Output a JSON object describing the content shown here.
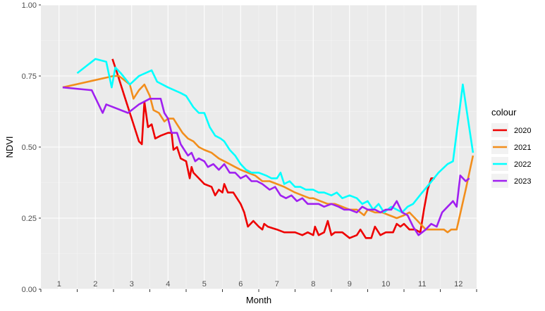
{
  "chart_data": {
    "type": "line",
    "xlabel": "Month",
    "ylabel": "NDVI",
    "xlim": [
      0.5,
      12.5
    ],
    "ylim": [
      0,
      1
    ],
    "y_ticks": [
      "0.00",
      "0.25",
      "0.50",
      "0.75",
      "1.00"
    ],
    "x_ticks": [
      "1",
      "2",
      "3",
      "4",
      "5",
      "6",
      "7",
      "8",
      "9",
      "10",
      "11",
      "12"
    ],
    "grid": true,
    "legend": {
      "title": "colour",
      "placement": "right"
    },
    "series": [
      {
        "name": "2020",
        "color": "#EE0000",
        "points": [
          [
            2.47,
            0.81
          ],
          [
            2.6,
            0.76
          ],
          [
            2.8,
            0.68
          ],
          [
            3.0,
            0.6
          ],
          [
            3.2,
            0.52
          ],
          [
            3.28,
            0.51
          ],
          [
            3.35,
            0.66
          ],
          [
            3.45,
            0.57
          ],
          [
            3.55,
            0.58
          ],
          [
            3.65,
            0.53
          ],
          [
            3.8,
            0.54
          ],
          [
            4.0,
            0.55
          ],
          [
            4.1,
            0.55
          ],
          [
            4.15,
            0.49
          ],
          [
            4.25,
            0.5
          ],
          [
            4.35,
            0.46
          ],
          [
            4.5,
            0.45
          ],
          [
            4.6,
            0.39
          ],
          [
            4.65,
            0.43
          ],
          [
            4.7,
            0.41
          ],
          [
            4.85,
            0.39
          ],
          [
            5.0,
            0.37
          ],
          [
            5.2,
            0.36
          ],
          [
            5.3,
            0.33
          ],
          [
            5.4,
            0.35
          ],
          [
            5.5,
            0.34
          ],
          [
            5.55,
            0.37
          ],
          [
            5.65,
            0.34
          ],
          [
            5.8,
            0.34
          ],
          [
            5.9,
            0.32
          ],
          [
            6.0,
            0.3
          ],
          [
            6.1,
            0.27
          ],
          [
            6.2,
            0.22
          ],
          [
            6.35,
            0.24
          ],
          [
            6.5,
            0.22
          ],
          [
            6.6,
            0.21
          ],
          [
            6.65,
            0.23
          ],
          [
            6.75,
            0.22
          ],
          [
            7.0,
            0.21
          ],
          [
            7.2,
            0.2
          ],
          [
            7.5,
            0.2
          ],
          [
            7.7,
            0.19
          ],
          [
            7.85,
            0.2
          ],
          [
            8.0,
            0.19
          ],
          [
            8.05,
            0.22
          ],
          [
            8.15,
            0.19
          ],
          [
            8.3,
            0.2
          ],
          [
            8.4,
            0.24
          ],
          [
            8.5,
            0.19
          ],
          [
            8.6,
            0.2
          ],
          [
            8.8,
            0.2
          ],
          [
            9.0,
            0.18
          ],
          [
            9.2,
            0.19
          ],
          [
            9.3,
            0.21
          ],
          [
            9.45,
            0.18
          ],
          [
            9.6,
            0.18
          ],
          [
            9.7,
            0.22
          ],
          [
            9.85,
            0.19
          ],
          [
            10.0,
            0.2
          ],
          [
            10.2,
            0.2
          ],
          [
            10.3,
            0.23
          ],
          [
            10.4,
            0.22
          ],
          [
            10.5,
            0.23
          ],
          [
            10.65,
            0.21
          ],
          [
            10.8,
            0.21
          ],
          [
            10.95,
            0.2
          ],
          [
            11.05,
            0.28
          ],
          [
            11.15,
            0.35
          ],
          [
            11.25,
            0.39
          ],
          [
            11.35,
            0.39
          ]
        ]
      },
      {
        "name": "2021",
        "color": "#F28E1C",
        "points": [
          [
            1.1,
            0.71
          ],
          [
            2.5,
            0.75
          ],
          [
            2.65,
            0.75
          ],
          [
            2.75,
            0.74
          ],
          [
            2.95,
            0.72
          ],
          [
            3.05,
            0.67
          ],
          [
            3.2,
            0.7
          ],
          [
            3.35,
            0.72
          ],
          [
            3.5,
            0.68
          ],
          [
            3.6,
            0.63
          ],
          [
            3.75,
            0.62
          ],
          [
            3.9,
            0.59
          ],
          [
            4.0,
            0.6
          ],
          [
            4.15,
            0.6
          ],
          [
            4.25,
            0.58
          ],
          [
            4.4,
            0.55
          ],
          [
            4.55,
            0.53
          ],
          [
            4.7,
            0.52
          ],
          [
            4.85,
            0.5
          ],
          [
            5.0,
            0.49
          ],
          [
            5.2,
            0.48
          ],
          [
            5.4,
            0.46
          ],
          [
            5.55,
            0.45
          ],
          [
            5.7,
            0.44
          ],
          [
            5.85,
            0.43
          ],
          [
            6.0,
            0.42
          ],
          [
            6.2,
            0.41
          ],
          [
            6.4,
            0.4
          ],
          [
            6.6,
            0.38
          ],
          [
            6.8,
            0.38
          ],
          [
            7.0,
            0.37
          ],
          [
            7.2,
            0.36
          ],
          [
            7.5,
            0.34
          ],
          [
            7.7,
            0.33
          ],
          [
            7.9,
            0.32
          ],
          [
            8.0,
            0.32
          ],
          [
            8.2,
            0.31
          ],
          [
            8.4,
            0.3
          ],
          [
            8.6,
            0.3
          ],
          [
            8.8,
            0.29
          ],
          [
            9.0,
            0.28
          ],
          [
            9.2,
            0.28
          ],
          [
            9.4,
            0.26
          ],
          [
            9.5,
            0.28
          ],
          [
            9.7,
            0.27
          ],
          [
            9.9,
            0.27
          ],
          [
            10.1,
            0.26
          ],
          [
            10.3,
            0.25
          ],
          [
            10.5,
            0.26
          ],
          [
            10.65,
            0.27
          ],
          [
            10.8,
            0.25
          ],
          [
            10.95,
            0.23
          ],
          [
            11.1,
            0.21
          ],
          [
            11.3,
            0.21
          ],
          [
            11.5,
            0.21
          ],
          [
            11.6,
            0.21
          ],
          [
            11.7,
            0.2
          ],
          [
            11.8,
            0.21
          ],
          [
            11.95,
            0.21
          ],
          [
            12.2,
            0.35
          ],
          [
            12.4,
            0.47
          ]
        ]
      },
      {
        "name": "2022",
        "color": "#00FFFF",
        "points": [
          [
            1.5,
            0.76
          ],
          [
            2.0,
            0.81
          ],
          [
            2.3,
            0.8
          ],
          [
            2.45,
            0.71
          ],
          [
            2.55,
            0.78
          ],
          [
            2.7,
            0.76
          ],
          [
            2.95,
            0.72
          ],
          [
            3.2,
            0.75
          ],
          [
            3.55,
            0.77
          ],
          [
            3.7,
            0.73
          ],
          [
            4.0,
            0.71
          ],
          [
            4.35,
            0.69
          ],
          [
            4.5,
            0.68
          ],
          [
            4.7,
            0.64
          ],
          [
            4.85,
            0.62
          ],
          [
            5.0,
            0.62
          ],
          [
            5.15,
            0.57
          ],
          [
            5.3,
            0.54
          ],
          [
            5.45,
            0.53
          ],
          [
            5.55,
            0.52
          ],
          [
            5.7,
            0.49
          ],
          [
            5.85,
            0.47
          ],
          [
            6.0,
            0.44
          ],
          [
            6.15,
            0.42
          ],
          [
            6.3,
            0.41
          ],
          [
            6.5,
            0.41
          ],
          [
            6.7,
            0.4
          ],
          [
            6.85,
            0.39
          ],
          [
            7.0,
            0.39
          ],
          [
            7.1,
            0.41
          ],
          [
            7.2,
            0.37
          ],
          [
            7.35,
            0.38
          ],
          [
            7.5,
            0.36
          ],
          [
            7.65,
            0.36
          ],
          [
            7.8,
            0.35
          ],
          [
            8.0,
            0.35
          ],
          [
            8.15,
            0.34
          ],
          [
            8.3,
            0.34
          ],
          [
            8.5,
            0.33
          ],
          [
            8.65,
            0.34
          ],
          [
            8.8,
            0.32
          ],
          [
            9.0,
            0.33
          ],
          [
            9.2,
            0.32
          ],
          [
            9.35,
            0.3
          ],
          [
            9.5,
            0.31
          ],
          [
            9.65,
            0.28
          ],
          [
            9.8,
            0.3
          ],
          [
            9.95,
            0.27
          ],
          [
            10.15,
            0.29
          ],
          [
            10.3,
            0.28
          ],
          [
            10.45,
            0.27
          ],
          [
            10.6,
            0.29
          ],
          [
            10.75,
            0.3
          ],
          [
            11.0,
            0.34
          ],
          [
            11.2,
            0.37
          ],
          [
            11.45,
            0.41
          ],
          [
            11.7,
            0.44
          ],
          [
            11.85,
            0.45
          ],
          [
            12.0,
            0.6
          ],
          [
            12.12,
            0.72
          ],
          [
            12.4,
            0.48
          ]
        ]
      },
      {
        "name": "2023",
        "color": "#A020F0",
        "points": [
          [
            1.1,
            0.71
          ],
          [
            1.9,
            0.7
          ],
          [
            2.2,
            0.62
          ],
          [
            2.3,
            0.65
          ],
          [
            2.5,
            0.64
          ],
          [
            2.9,
            0.62
          ],
          [
            3.2,
            0.65
          ],
          [
            3.5,
            0.67
          ],
          [
            3.8,
            0.67
          ],
          [
            3.9,
            0.62
          ],
          [
            4.0,
            0.6
          ],
          [
            4.1,
            0.55
          ],
          [
            4.25,
            0.55
          ],
          [
            4.35,
            0.51
          ],
          [
            4.45,
            0.49
          ],
          [
            4.55,
            0.47
          ],
          [
            4.65,
            0.48
          ],
          [
            4.75,
            0.45
          ],
          [
            4.85,
            0.46
          ],
          [
            5.0,
            0.45
          ],
          [
            5.1,
            0.43
          ],
          [
            5.25,
            0.44
          ],
          [
            5.4,
            0.42
          ],
          [
            5.55,
            0.44
          ],
          [
            5.7,
            0.41
          ],
          [
            5.85,
            0.41
          ],
          [
            6.0,
            0.39
          ],
          [
            6.15,
            0.4
          ],
          [
            6.3,
            0.38
          ],
          [
            6.45,
            0.38
          ],
          [
            6.6,
            0.37
          ],
          [
            6.8,
            0.35
          ],
          [
            6.95,
            0.36
          ],
          [
            7.1,
            0.33
          ],
          [
            7.25,
            0.32
          ],
          [
            7.4,
            0.33
          ],
          [
            7.55,
            0.31
          ],
          [
            7.7,
            0.32
          ],
          [
            7.85,
            0.3
          ],
          [
            8.0,
            0.3
          ],
          [
            8.15,
            0.3
          ],
          [
            8.3,
            0.29
          ],
          [
            8.5,
            0.3
          ],
          [
            8.7,
            0.29
          ],
          [
            8.85,
            0.28
          ],
          [
            9.0,
            0.28
          ],
          [
            9.2,
            0.27
          ],
          [
            9.35,
            0.29
          ],
          [
            9.5,
            0.28
          ],
          [
            9.7,
            0.28
          ],
          [
            9.85,
            0.27
          ],
          [
            10.0,
            0.28
          ],
          [
            10.15,
            0.28
          ],
          [
            10.3,
            0.31
          ],
          [
            10.45,
            0.27
          ],
          [
            10.6,
            0.26
          ],
          [
            10.75,
            0.22
          ],
          [
            10.9,
            0.19
          ],
          [
            11.1,
            0.21
          ],
          [
            11.25,
            0.23
          ],
          [
            11.4,
            0.22
          ],
          [
            11.55,
            0.27
          ],
          [
            11.7,
            0.29
          ],
          [
            11.85,
            0.31
          ],
          [
            11.95,
            0.29
          ],
          [
            12.05,
            0.4
          ],
          [
            12.2,
            0.38
          ],
          [
            12.3,
            0.39
          ]
        ]
      }
    ]
  }
}
